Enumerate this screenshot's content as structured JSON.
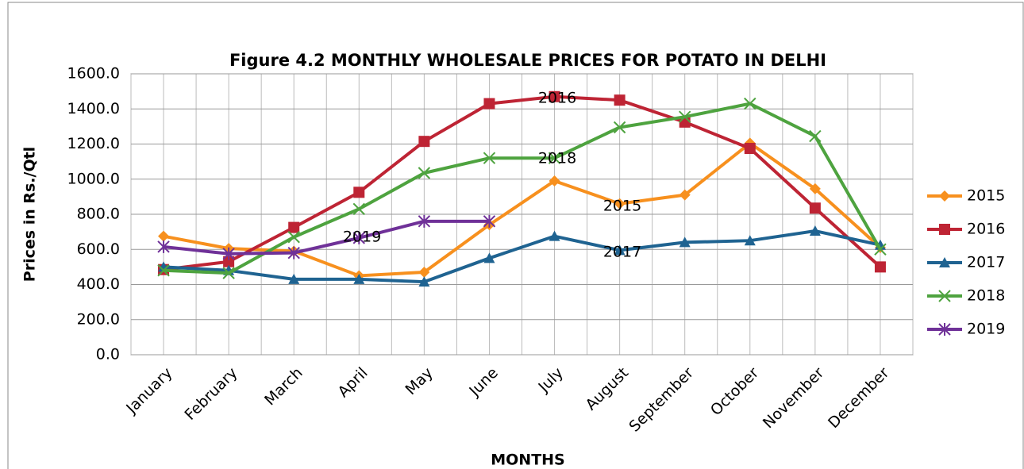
{
  "chart_data": {
    "type": "line",
    "title": "Figure 4.2 MONTHLY WHOLESALE PRICES FOR POTATO IN DELHI",
    "x_label": "MONTHS",
    "y_label": "Prices in  Rs./Qtl",
    "categories": [
      "January",
      "February",
      "March",
      "April",
      "May",
      "June",
      "July",
      "August",
      "September",
      "October",
      "November",
      "December"
    ],
    "series": [
      {
        "name": "2015",
        "color": "#f7901e",
        "marker": "diamond",
        "values": [
          675,
          605,
          590,
          450,
          470,
          740,
          990,
          860,
          910,
          1205,
          945,
          610
        ]
      },
      {
        "name": "2016",
        "color": "#be2434",
        "marker": "square",
        "values": [
          485,
          530,
          725,
          925,
          1215,
          1430,
          1470,
          1450,
          1325,
          1175,
          835,
          500
        ]
      },
      {
        "name": "2017",
        "color": "#1f6391",
        "marker": "triangle",
        "values": [
          500,
          480,
          430,
          430,
          415,
          550,
          675,
          595,
          640,
          650,
          705,
          625
        ]
      },
      {
        "name": "2018",
        "color": "#4ea33f",
        "marker": "x",
        "values": [
          480,
          465,
          670,
          830,
          1035,
          1120,
          1120,
          1295,
          1355,
          1430,
          1245,
          600
        ]
      },
      {
        "name": "2019",
        "color": "#6f3198",
        "marker": "star",
        "values": [
          615,
          575,
          580,
          665,
          760,
          760,
          null,
          null,
          null,
          null,
          null,
          null
        ]
      }
    ],
    "annotations": [
      "2016",
      "2018",
      "2015",
      "2019",
      "2017"
    ],
    "ylim": [
      0,
      1600
    ],
    "yticks": [
      {
        "value": 0,
        "label": "0.0"
      },
      {
        "value": 200,
        "label": "200.0"
      },
      {
        "value": 400,
        "label": "400.0"
      },
      {
        "value": 600,
        "label": "600.0"
      },
      {
        "value": 800,
        "label": "800.0"
      },
      {
        "value": 1000,
        "label": "1000.0"
      },
      {
        "value": 1200,
        "label": "1200.0"
      },
      {
        "value": 1400,
        "label": "1400.0"
      },
      {
        "value": 1600,
        "label": "1600.0"
      }
    ],
    "grid": true,
    "legend": "right"
  }
}
